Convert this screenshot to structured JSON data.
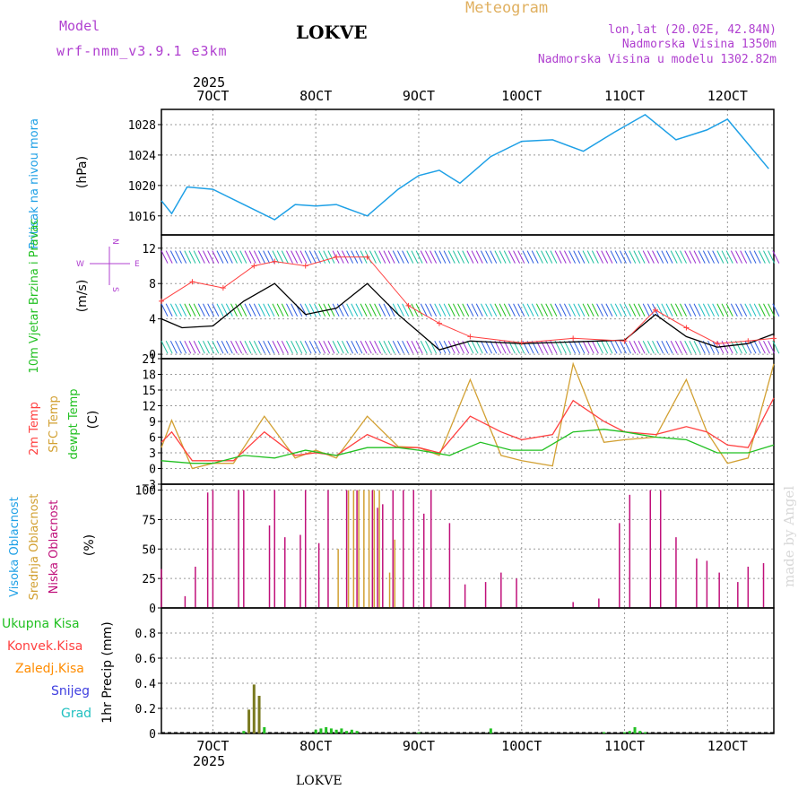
{
  "header": {
    "title": "LOKVE",
    "subtitle": "Meteogram",
    "model_label": "Model",
    "model_name": "wrf-nmm_v3.9.1 e3km",
    "coords": "lon,lat (20.02E, 42.84N)",
    "elevation": "Nadmorska Visina 1350m",
    "model_elevation": "Nadmorska Visina u modelu 1302.82m",
    "footer_label": "LOKVE",
    "watermark": "made by Angel"
  },
  "colors": {
    "pressure": "#1ea0e6",
    "wind_speed": "#000000",
    "wind_gust": "#ff4040",
    "t2m": "#ff4040",
    "tsfc": "#d2a032",
    "dewpt": "#22c022",
    "cloud_high": "#1ea0e6",
    "cloud_mid": "#d2a032",
    "cloud_low": "#c0107a",
    "precip_total": "#22c022",
    "precip_conv": "#ff4040",
    "precip_frozen": "#ff8c00",
    "precip_snow": "#4040e0",
    "precip_grad": "#20c0c0",
    "title_purple": "#b040d0",
    "meteogram_gold": "#e0b060"
  },
  "chart_data": [
    {
      "type": "line",
      "name": "pressure",
      "title": "Pritisak na nivou mora",
      "ylabel": "(hPa)",
      "ylim": [
        1013.5,
        1030
      ],
      "yticks": [
        1016,
        1020,
        1024,
        1028
      ],
      "x": [
        6.5,
        6.6,
        6.75,
        7.0,
        7.3,
        7.6,
        7.8,
        8.0,
        8.2,
        8.5,
        8.8,
        9.0,
        9.2,
        9.4,
        9.7,
        10.0,
        10.3,
        10.6,
        10.9,
        11.2,
        11.5,
        11.8,
        12.0,
        12.4
      ],
      "values": [
        1018,
        1016.3,
        1019.8,
        1019.5,
        1017.5,
        1015.5,
        1017.5,
        1017.3,
        1017.5,
        1016.0,
        1019.5,
        1021.3,
        1022.0,
        1020.3,
        1023.8,
        1025.8,
        1026.0,
        1024.5,
        1027.0,
        1029.3,
        1026.0,
        1027.3,
        1028.7,
        1022.2
      ]
    },
    {
      "type": "line",
      "name": "wind",
      "title": "10m Vjetar Brzina i Pravac",
      "ylabel": "(m/s)",
      "ylim": [
        -0.5,
        13.5
      ],
      "yticks": [
        0,
        4,
        8,
        12
      ],
      "compass": [
        "N",
        "S",
        "W",
        "E"
      ],
      "series": [
        {
          "name": "speed",
          "x": [
            6.5,
            6.7,
            7.0,
            7.3,
            7.6,
            7.9,
            8.2,
            8.5,
            8.8,
            9.0,
            9.2,
            9.5,
            10.0,
            10.5,
            11.0,
            11.3,
            11.6,
            11.9,
            12.2,
            12.45
          ],
          "values": [
            4,
            3,
            3.2,
            6,
            8,
            4.5,
            5.2,
            8,
            4.5,
            2.5,
            0.5,
            1.5,
            1.2,
            1.4,
            1.6,
            4.5,
            2.0,
            0.8,
            1.2,
            2.3
          ]
        },
        {
          "name": "gust",
          "x": [
            6.5,
            6.8,
            7.1,
            7.4,
            7.6,
            7.9,
            8.2,
            8.5,
            8.9,
            9.2,
            9.5,
            10.0,
            10.5,
            11.0,
            11.3,
            11.6,
            11.9,
            12.2,
            12.45
          ],
          "values": [
            6,
            8.2,
            7.5,
            10,
            10.5,
            10,
            11,
            11,
            5.5,
            3.5,
            2,
            1.3,
            1.8,
            1.5,
            5,
            3,
            1.2,
            1.5,
            1.8
          ]
        }
      ]
    },
    {
      "type": "line",
      "name": "temperature",
      "title": "2m Temp",
      "title_sfc": "SFC Temp",
      "title_dew": "dewpt Temp",
      "ylabel": "(C)",
      "ylim": [
        -3,
        21
      ],
      "yticks": [
        -3,
        0,
        3,
        6,
        9,
        12,
        15,
        18,
        21
      ],
      "series": [
        {
          "name": "t2m",
          "x": [
            6.5,
            6.6,
            6.8,
            7.0,
            7.2,
            7.5,
            7.8,
            8.0,
            8.2,
            8.5,
            8.8,
            9.0,
            9.2,
            9.5,
            9.8,
            10.0,
            10.3,
            10.5,
            10.8,
            11.0,
            11.3,
            11.6,
            11.8,
            12.0,
            12.2,
            12.45
          ],
          "values": [
            5,
            7,
            1.5,
            1.5,
            1.5,
            7,
            2.5,
            3,
            2.5,
            6.5,
            4,
            4,
            3,
            10,
            7,
            5.5,
            6.5,
            13,
            9,
            7,
            6.5,
            8,
            7,
            4.5,
            4,
            13.5
          ]
        },
        {
          "name": "tsfc",
          "x": [
            6.5,
            6.6,
            6.8,
            7.0,
            7.2,
            7.5,
            7.8,
            8.0,
            8.2,
            8.5,
            8.8,
            9.0,
            9.2,
            9.5,
            9.8,
            10.0,
            10.3,
            10.5,
            10.8,
            11.0,
            11.3,
            11.6,
            11.8,
            12.0,
            12.2,
            12.45
          ],
          "values": [
            4,
            9.2,
            0,
            1,
            1,
            10,
            2,
            3.5,
            2,
            10,
            4.2,
            4,
            2.5,
            17,
            2.5,
            1.5,
            0.5,
            20,
            5,
            5.5,
            6,
            17,
            7,
            1,
            2,
            20
          ]
        },
        {
          "name": "dewpt",
          "x": [
            6.5,
            6.8,
            7.0,
            7.3,
            7.6,
            7.9,
            8.2,
            8.5,
            8.8,
            9.0,
            9.3,
            9.6,
            9.9,
            10.2,
            10.5,
            10.8,
            11.0,
            11.3,
            11.6,
            11.9,
            12.2,
            12.45
          ],
          "values": [
            1.5,
            1,
            1,
            2.5,
            2,
            3.5,
            2.5,
            4,
            4,
            3.5,
            2.5,
            5,
            3.5,
            3.5,
            7,
            7.5,
            7,
            6,
            5.5,
            3,
            3,
            4.5
          ]
        }
      ]
    },
    {
      "type": "bar",
      "name": "cloud_cover",
      "title_high": "Visoka Oblacnost",
      "title_mid": "Srednja Oblacnost",
      "title_low": "Niska Oblacnost",
      "ylabel": "(%)",
      "ylim": [
        0,
        105
      ],
      "yticks": [
        0,
        25,
        50,
        75,
        100
      ],
      "low": {
        "x": [
          6.5,
          6.73,
          6.83,
          6.95,
          7.0,
          7.25,
          7.3,
          7.55,
          7.6,
          7.7,
          7.85,
          7.9,
          8.03,
          8.12,
          8.3,
          8.4,
          8.55,
          8.6,
          8.65,
          8.75,
          8.85,
          8.95,
          9.05,
          9.12,
          9.3,
          9.45,
          9.65,
          9.8,
          9.95,
          10.5,
          10.75,
          10.95,
          11.05,
          11.25,
          11.35,
          11.5,
          11.7,
          11.8,
          11.92,
          12.1,
          12.2,
          12.35
        ],
        "values": [
          33,
          10,
          35,
          98,
          100,
          100,
          100,
          70,
          100,
          60,
          62,
          100,
          55,
          100,
          100,
          100,
          100,
          85,
          88,
          100,
          100,
          100,
          80,
          100,
          72,
          20,
          22,
          30,
          25,
          5,
          8,
          72,
          96,
          100,
          100,
          60,
          42,
          40,
          30,
          22,
          35,
          38
        ]
      },
      "mid": {
        "x": [
          8.2,
          8.3,
          8.35,
          8.4,
          8.45,
          8.5,
          8.55,
          8.6,
          8.7,
          8.75
        ],
        "values": [
          50,
          100,
          100,
          100,
          100,
          100,
          100,
          100,
          30,
          58
        ]
      }
    },
    {
      "type": "bar",
      "name": "precipitation",
      "legend": [
        "Ukupna Kisa",
        "Konvek.Kisa",
        "Zaledj.Kisa",
        "Snijeg",
        "Grad"
      ],
      "ylabel": "1hr Precip (mm)",
      "ylim": [
        0,
        1.0
      ],
      "yticks": [
        0,
        0.2,
        0.4,
        0.6,
        0.8
      ],
      "total": {
        "x": [
          7.3,
          7.35,
          7.4,
          7.45,
          7.5,
          8.0,
          8.05,
          8.1,
          8.15,
          8.2,
          8.25,
          8.3,
          8.35,
          8.4,
          9.0,
          9.7,
          10.8,
          11.0,
          11.05,
          11.1,
          11.15,
          11.2
        ],
        "values": [
          0.02,
          0.19,
          0.39,
          0.3,
          0.05,
          0.03,
          0.04,
          0.05,
          0.04,
          0.03,
          0.04,
          0.02,
          0.03,
          0.02,
          0.01,
          0.04,
          0.01,
          0.01,
          0.02,
          0.05,
          0.02,
          0.01
        ]
      }
    }
  ],
  "x_axis": {
    "day_labels": [
      "7OCT",
      "8OCT",
      "9OCT",
      "10OCT",
      "11OCT",
      "12OCT"
    ],
    "year_label": "2025",
    "x_range": [
      6.5,
      12.45
    ]
  }
}
